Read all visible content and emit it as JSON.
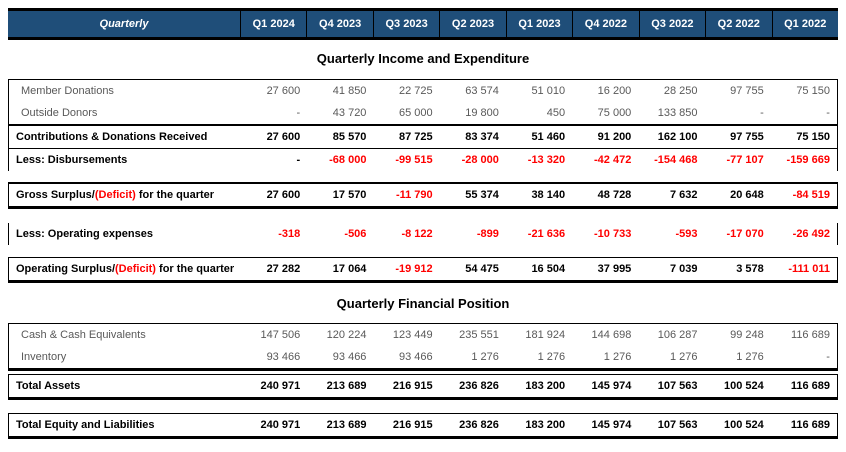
{
  "header": {
    "row_label": "Quarterly",
    "columns": [
      "Q1 2024",
      "Q4 2023",
      "Q3 2023",
      "Q2 2023",
      "Q1 2023",
      "Q4 2022",
      "Q3 2022",
      "Q2 2022",
      "Q1 2022"
    ]
  },
  "colors": {
    "header_bg": "#1F4E79",
    "header_text": "#FFFFFF",
    "negative": "#FF0000",
    "body_text": "#595959",
    "bold_text": "#000000",
    "rule": "#000000"
  },
  "sections": [
    {
      "title": "Quarterly Income and Expenditure",
      "groups": [
        {
          "kind": "open-box",
          "rows": [
            {
              "name": "member-donations",
              "bold": false,
              "divider": "none",
              "label": [
                {
                  "text": "Member Donations",
                  "red": false
                }
              ],
              "values": [
                "27 600",
                "41 850",
                "22 725",
                "63 574",
                "51 010",
                "16 200",
                "28 250",
                "97 755",
                "75 150"
              ]
            },
            {
              "name": "outside-donors",
              "bold": false,
              "divider": "medium",
              "label": [
                {
                  "text": "Outside Donors",
                  "red": false
                }
              ],
              "values": [
                "-",
                "43 720",
                "65 000",
                "19 800",
                "450",
                "75 000",
                "133 850",
                "-",
                "-"
              ]
            },
            {
              "name": "contributions-donations-received",
              "bold": true,
              "divider": "thin",
              "label": [
                {
                  "text": "Contributions & Donations Received",
                  "red": false
                }
              ],
              "values": [
                "27 600",
                "85 570",
                "87 725",
                "83 374",
                "51 460",
                "91 200",
                "162 100",
                "97 755",
                "75 150"
              ]
            },
            {
              "name": "less-disbursements",
              "bold": true,
              "divider": "none",
              "label": [
                {
                  "text": "Less: Disbursements",
                  "red": false
                }
              ],
              "values": [
                "-",
                "-68 000",
                "-99 515",
                "-28 000",
                "-13 320",
                "-42 472",
                "-154 468",
                "-77 107",
                "-159 669"
              ]
            }
          ]
        },
        {
          "kind": "gross-band",
          "rows": [
            {
              "name": "gross-surplus-deficit",
              "bold": true,
              "divider": "none",
              "label": [
                {
                  "text": "Gross Surplus/",
                  "red": false
                },
                {
                  "text": "(Deficit)",
                  "red": true
                },
                {
                  "text": " for the quarter",
                  "red": false
                }
              ],
              "values": [
                "27 600",
                "17 570",
                "-11 790",
                "55 374",
                "38 140",
                "48 728",
                "7 632",
                "20 648",
                "-84 519"
              ]
            }
          ]
        },
        {
          "kind": "sides-only",
          "rows": [
            {
              "name": "less-operating-expenses",
              "bold": true,
              "divider": "none",
              "label": [
                {
                  "text": "Less: Operating expenses",
                  "red": false
                }
              ],
              "values": [
                "-318",
                "-506",
                "-8 122",
                "-899",
                "-21 636",
                "-10 733",
                "-593",
                "-17 070",
                "-26 492"
              ]
            }
          ]
        },
        {
          "kind": "total-band",
          "rows": [
            {
              "name": "operating-surplus-deficit",
              "bold": true,
              "divider": "none",
              "label": [
                {
                  "text": "Operating Surplus/",
                  "red": false
                },
                {
                  "text": "(Deficit)",
                  "red": true
                },
                {
                  "text": " for the quarter",
                  "red": false
                }
              ],
              "values": [
                "27 282",
                "17 064",
                "-19 912",
                "54 475",
                "16 504",
                "37 995",
                "7 039",
                "3 578",
                "-111 011"
              ]
            }
          ]
        }
      ]
    },
    {
      "title": "Quarterly Financial Position",
      "groups": [
        {
          "kind": "total-band",
          "rows": [
            {
              "name": "cash-cash-equivalents",
              "bold": false,
              "divider": "none",
              "label": [
                {
                  "text": "Cash & Cash Equivalents",
                  "red": false
                }
              ],
              "values": [
                "147 506",
                "120 224",
                "123 449",
                "235 551",
                "181 924",
                "144 698",
                "106 287",
                "99 248",
                "116 689"
              ]
            },
            {
              "name": "inventory",
              "bold": false,
              "divider": "none",
              "label": [
                {
                  "text": "Inventory",
                  "red": false
                }
              ],
              "values": [
                "93 466",
                "93 466",
                "93 466",
                "1 276",
                "1 276",
                "1 276",
                "1 276",
                "1 276",
                "-"
              ]
            }
          ]
        },
        {
          "kind": "total-band",
          "rows": [
            {
              "name": "total-assets",
              "bold": true,
              "divider": "none",
              "label": [
                {
                  "text": "Total Assets",
                  "red": false
                }
              ],
              "values": [
                "240 971",
                "213 689",
                "216 915",
                "236 826",
                "183 200",
                "145 974",
                "107 563",
                "100 524",
                "116 689"
              ]
            }
          ]
        },
        {
          "kind": "total-band",
          "rows": [
            {
              "name": "total-equity-liabilities",
              "bold": true,
              "divider": "none",
              "label": [
                {
                  "text": "Total Equity and Liabilities",
                  "red": false
                }
              ],
              "values": [
                "240 971",
                "213 689",
                "216 915",
                "236 826",
                "183 200",
                "145 974",
                "107 563",
                "100 524",
                "116 689"
              ]
            }
          ]
        }
      ]
    }
  ]
}
